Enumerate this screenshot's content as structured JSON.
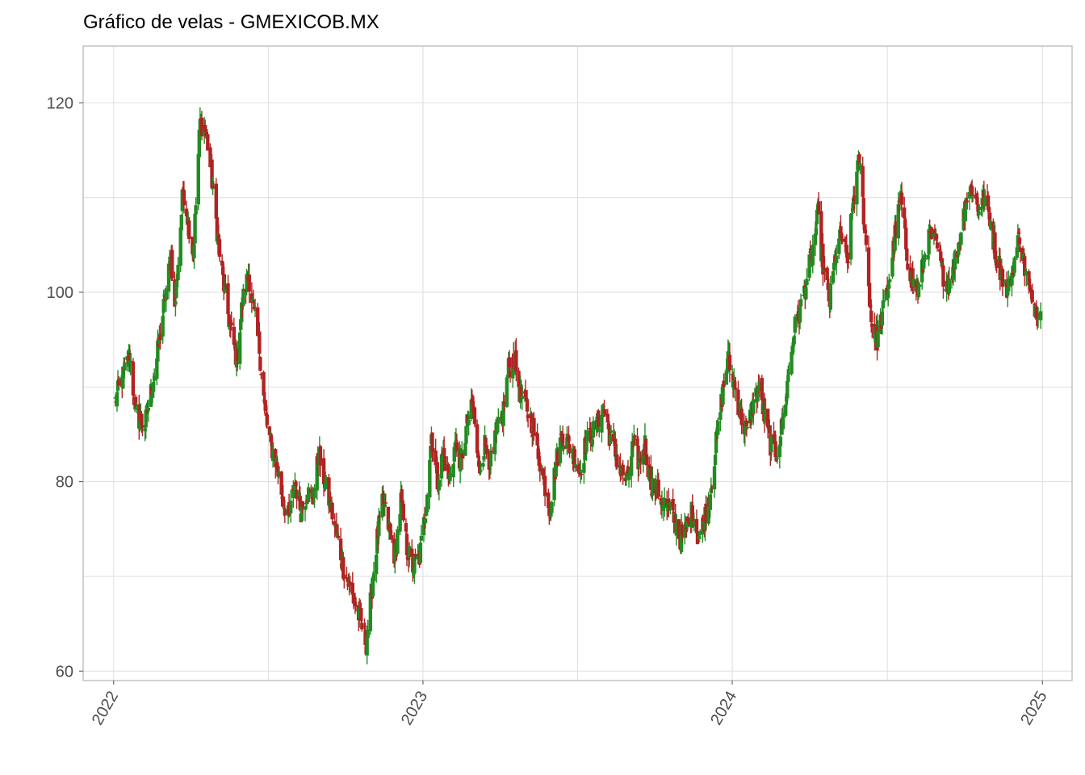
{
  "chart_data": {
    "type": "candlestick",
    "title": "Gráfico de velas - GMEXICOB.MX",
    "xlabel": "",
    "ylabel": "",
    "x_range": [
      "2021-11-26",
      "2025-02-05"
    ],
    "ylim": [
      59,
      126
    ],
    "x_ticks": [
      "2022",
      "2023",
      "2024",
      "2025"
    ],
    "x_tick_dates": [
      "2022-01-01",
      "2023-01-01",
      "2024-01-01",
      "2025-01-01"
    ],
    "y_ticks": [
      60,
      80,
      100,
      120
    ],
    "grid": true,
    "legend": "none",
    "colors": {
      "up": "#228b22",
      "down": "#b22222",
      "grid": "#dedede",
      "panel_border": "#b3b3b3"
    },
    "series": [
      {
        "name": "",
        "points": [
          [
            "2022-01-03",
            88.5
          ],
          [
            "2022-01-20",
            93.5
          ],
          [
            "2022-01-27",
            87
          ],
          [
            "2022-02-07",
            86
          ],
          [
            "2022-02-21",
            93
          ],
          [
            "2022-03-02",
            99
          ],
          [
            "2022-03-10",
            104
          ],
          [
            "2022-03-14",
            98
          ],
          [
            "2022-03-24",
            111
          ],
          [
            "2022-04-05",
            104
          ],
          [
            "2022-04-13",
            118
          ],
          [
            "2022-04-20",
            117
          ],
          [
            "2022-04-28",
            111
          ],
          [
            "2022-05-06",
            104
          ],
          [
            "2022-05-12",
            100
          ],
          [
            "2022-05-19",
            96
          ],
          [
            "2022-05-26",
            93
          ],
          [
            "2022-06-02",
            99
          ],
          [
            "2022-06-09",
            102
          ],
          [
            "2022-06-15",
            98
          ],
          [
            "2022-06-22",
            94
          ],
          [
            "2022-06-29",
            87
          ],
          [
            "2022-07-05",
            84
          ],
          [
            "2022-07-12",
            82
          ],
          [
            "2022-07-20",
            78
          ],
          [
            "2022-07-27",
            76
          ],
          [
            "2022-08-03",
            80
          ],
          [
            "2022-08-10",
            77
          ],
          [
            "2022-08-17",
            79
          ],
          [
            "2022-08-24",
            78
          ],
          [
            "2022-08-31",
            83
          ],
          [
            "2022-09-07",
            80
          ],
          [
            "2022-09-15",
            77
          ],
          [
            "2022-09-22",
            74
          ],
          [
            "2022-09-29",
            71
          ],
          [
            "2022-10-06",
            69
          ],
          [
            "2022-10-13",
            67
          ],
          [
            "2022-10-20",
            65
          ],
          [
            "2022-10-26",
            63
          ],
          [
            "2022-11-01",
            68
          ],
          [
            "2022-11-08",
            74
          ],
          [
            "2022-11-15",
            78
          ],
          [
            "2022-11-22",
            75
          ],
          [
            "2022-11-29",
            72
          ],
          [
            "2022-12-06",
            78
          ],
          [
            "2022-12-13",
            73
          ],
          [
            "2022-12-20",
            71
          ],
          [
            "2022-12-28",
            72
          ],
          [
            "2023-01-04",
            77
          ],
          [
            "2023-01-11",
            85
          ],
          [
            "2023-01-18",
            80
          ],
          [
            "2023-01-25",
            83
          ],
          [
            "2023-02-01",
            80
          ],
          [
            "2023-02-08",
            84
          ],
          [
            "2023-02-15",
            82
          ],
          [
            "2023-02-22",
            86
          ],
          [
            "2023-03-01",
            88
          ],
          [
            "2023-03-08",
            81
          ],
          [
            "2023-03-15",
            84
          ],
          [
            "2023-03-22",
            82
          ],
          [
            "2023-03-29",
            85
          ],
          [
            "2023-04-05",
            87
          ],
          [
            "2023-04-12",
            92
          ],
          [
            "2023-04-19",
            93
          ],
          [
            "2023-04-26",
            89
          ],
          [
            "2023-05-03",
            88
          ],
          [
            "2023-05-10",
            86
          ],
          [
            "2023-05-17",
            83
          ],
          [
            "2023-05-24",
            80
          ],
          [
            "2023-05-31",
            77
          ],
          [
            "2023-06-07",
            82
          ],
          [
            "2023-06-14",
            85
          ],
          [
            "2023-06-21",
            84
          ],
          [
            "2023-06-28",
            83
          ],
          [
            "2023-07-05",
            81
          ],
          [
            "2023-07-12",
            84
          ],
          [
            "2023-07-19",
            85
          ],
          [
            "2023-07-26",
            86
          ],
          [
            "2023-08-02",
            88
          ],
          [
            "2023-08-09",
            85
          ],
          [
            "2023-08-16",
            83
          ],
          [
            "2023-08-23",
            81
          ],
          [
            "2023-08-30",
            80
          ],
          [
            "2023-09-06",
            84
          ],
          [
            "2023-09-13",
            82
          ],
          [
            "2023-09-20",
            84
          ],
          [
            "2023-09-27",
            80
          ],
          [
            "2023-10-04",
            79
          ],
          [
            "2023-10-11",
            78
          ],
          [
            "2023-10-18",
            77
          ],
          [
            "2023-10-25",
            76
          ],
          [
            "2023-11-01",
            74
          ],
          [
            "2023-11-08",
            75
          ],
          [
            "2023-11-15",
            77
          ],
          [
            "2023-11-22",
            74
          ],
          [
            "2023-11-29",
            76
          ],
          [
            "2023-12-06",
            79
          ],
          [
            "2023-12-13",
            84
          ],
          [
            "2023-12-20",
            89
          ],
          [
            "2023-12-27",
            93
          ],
          [
            "2024-01-04",
            90
          ],
          [
            "2024-01-11",
            87
          ],
          [
            "2024-01-18",
            85
          ],
          [
            "2024-01-25",
            88
          ],
          [
            "2024-02-01",
            90
          ],
          [
            "2024-02-08",
            87
          ],
          [
            "2024-02-15",
            84
          ],
          [
            "2024-02-22",
            83
          ],
          [
            "2024-02-29",
            86
          ],
          [
            "2024-03-07",
            91
          ],
          [
            "2024-03-14",
            96
          ],
          [
            "2024-03-21",
            98
          ],
          [
            "2024-03-28",
            101
          ],
          [
            "2024-04-04",
            104
          ],
          [
            "2024-04-11",
            108
          ],
          [
            "2024-04-18",
            102
          ],
          [
            "2024-04-25",
            99
          ],
          [
            "2024-05-02",
            104
          ],
          [
            "2024-05-09",
            106
          ],
          [
            "2024-05-16",
            103
          ],
          [
            "2024-05-23",
            110
          ],
          [
            "2024-05-30",
            114
          ],
          [
            "2024-06-06",
            106
          ],
          [
            "2024-06-13",
            97
          ],
          [
            "2024-06-20",
            95
          ],
          [
            "2024-06-27",
            98
          ],
          [
            "2024-07-04",
            101
          ],
          [
            "2024-07-11",
            106
          ],
          [
            "2024-07-18",
            110
          ],
          [
            "2024-07-25",
            104
          ],
          [
            "2024-08-01",
            101
          ],
          [
            "2024-08-08",
            100
          ],
          [
            "2024-08-15",
            104
          ],
          [
            "2024-08-22",
            106
          ],
          [
            "2024-08-29",
            105
          ],
          [
            "2024-09-05",
            102
          ],
          [
            "2024-09-12",
            101
          ],
          [
            "2024-09-19",
            103
          ],
          [
            "2024-09-26",
            106
          ],
          [
            "2024-10-03",
            110
          ],
          [
            "2024-10-10",
            111
          ],
          [
            "2024-10-17",
            109
          ],
          [
            "2024-10-24",
            110
          ],
          [
            "2024-10-31",
            108
          ],
          [
            "2024-11-07",
            104
          ],
          [
            "2024-11-14",
            102
          ],
          [
            "2024-11-21",
            100
          ],
          [
            "2024-11-28",
            103
          ],
          [
            "2024-12-05",
            106
          ],
          [
            "2024-12-12",
            102
          ],
          [
            "2024-12-19",
            99
          ],
          [
            "2024-12-30",
            98
          ]
        ]
      }
    ]
  }
}
